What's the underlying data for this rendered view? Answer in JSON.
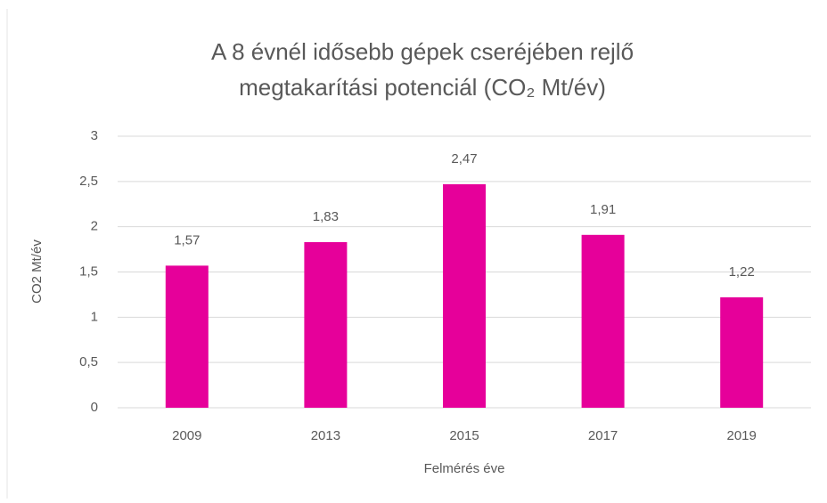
{
  "chart_data": {
    "type": "bar",
    "title": "A 8 évnél idősebb gépek cseréjében rejlő megtakarítási potenciál (CO₂ Mt/év)",
    "x_label": "Felmérés éve",
    "y_label": "CO2 Mt/év",
    "categories": [
      "2009",
      "2013",
      "2015",
      "2017",
      "2019"
    ],
    "values": [
      1.57,
      1.83,
      2.47,
      1.91,
      1.22
    ],
    "value_labels": [
      "1,57",
      "1,83",
      "2,47",
      "1,91",
      "1,22"
    ],
    "color": "#e6009a",
    "ylim": [
      0,
      3
    ],
    "yticks": [
      0,
      {
        "value": 0.5,
        "label": "0,5"
      },
      1,
      {
        "value": 1.5,
        "label": "1,5"
      },
      2,
      {
        "value": 2.5,
        "label": "2,5"
      },
      3
    ],
    "grid": true
  }
}
